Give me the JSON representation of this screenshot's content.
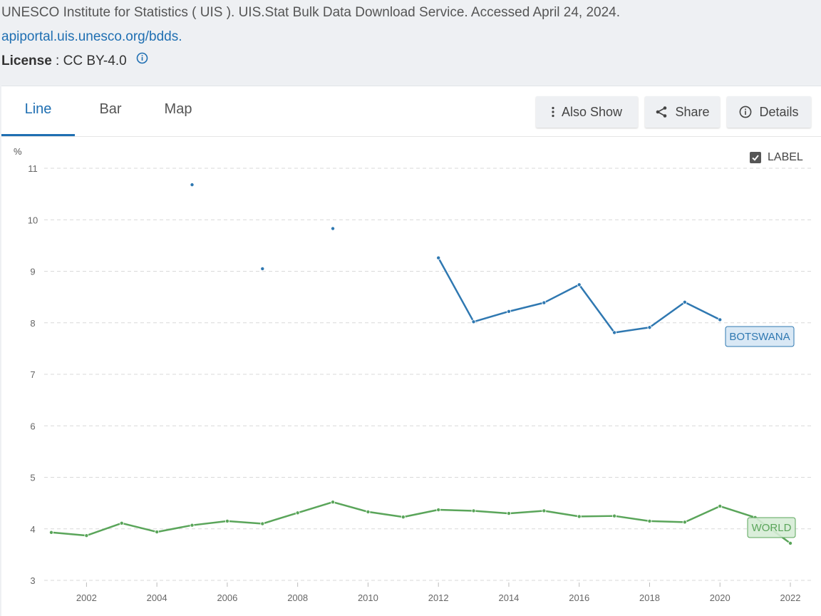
{
  "source": {
    "citation": "UNESCO Institute for Statistics ( UIS ). UIS.Stat Bulk Data Download Service. Accessed April 24, 2024.",
    "link": "apiportal.uis.unesco.org/bdds",
    "link_suffix": ".",
    "license_label": "License",
    "license_sep": " : ",
    "license_value": "CC BY-4.0"
  },
  "tabs": [
    {
      "label": "Line",
      "active": true
    },
    {
      "label": "Bar",
      "active": false
    },
    {
      "label": "Map",
      "active": false
    }
  ],
  "toolbar": {
    "also_show": "Also Show",
    "share": "Share",
    "details": "Details"
  },
  "label_toggle": {
    "label": "LABEL",
    "checked": true
  },
  "chart_data": {
    "type": "line",
    "ylabel": "%",
    "ylim": [
      3,
      11
    ],
    "yticks": [
      "3",
      "4",
      "5",
      "6",
      "7",
      "8",
      "9",
      "10",
      "11"
    ],
    "xlim": [
      2001,
      2022
    ],
    "xticks": [
      "2002",
      "2004",
      "2006",
      "2008",
      "2010",
      "2012",
      "2014",
      "2016",
      "2018",
      "2020",
      "2022"
    ],
    "grid": true,
    "series": [
      {
        "name": "BOTSWANA",
        "color": "#2f78b1",
        "label_bg": "#d5e6f4",
        "points": [
          {
            "x": 2005,
            "y": 10.68
          },
          {
            "x": 2007,
            "y": 9.05
          },
          {
            "x": 2009,
            "y": 9.83
          },
          {
            "x": 2012,
            "y": 9.26
          },
          {
            "x": 2013,
            "y": 8.02
          },
          {
            "x": 2014,
            "y": 8.22
          },
          {
            "x": 2015,
            "y": 8.39
          },
          {
            "x": 2016,
            "y": 8.74
          },
          {
            "x": 2017,
            "y": 7.81
          },
          {
            "x": 2018,
            "y": 7.91
          },
          {
            "x": 2019,
            "y": 8.4
          },
          {
            "x": 2020,
            "y": 8.06
          }
        ]
      },
      {
        "name": "WORLD",
        "color": "#5aa55a",
        "label_bg": "#d6ecd6",
        "points": [
          {
            "x": 2001,
            "y": 3.93
          },
          {
            "x": 2002,
            "y": 3.87
          },
          {
            "x": 2003,
            "y": 4.11
          },
          {
            "x": 2004,
            "y": 3.94
          },
          {
            "x": 2005,
            "y": 4.07
          },
          {
            "x": 2006,
            "y": 4.15
          },
          {
            "x": 2007,
            "y": 4.1
          },
          {
            "x": 2008,
            "y": 4.31
          },
          {
            "x": 2009,
            "y": 4.52
          },
          {
            "x": 2010,
            "y": 4.33
          },
          {
            "x": 2011,
            "y": 4.23
          },
          {
            "x": 2012,
            "y": 4.37
          },
          {
            "x": 2013,
            "y": 4.35
          },
          {
            "x": 2014,
            "y": 4.3
          },
          {
            "x": 2015,
            "y": 4.35
          },
          {
            "x": 2016,
            "y": 4.24
          },
          {
            "x": 2017,
            "y": 4.25
          },
          {
            "x": 2018,
            "y": 4.15
          },
          {
            "x": 2019,
            "y": 4.13
          },
          {
            "x": 2020,
            "y": 4.44
          },
          {
            "x": 2021,
            "y": 4.22
          },
          {
            "x": 2022,
            "y": 3.72
          }
        ]
      }
    ]
  }
}
